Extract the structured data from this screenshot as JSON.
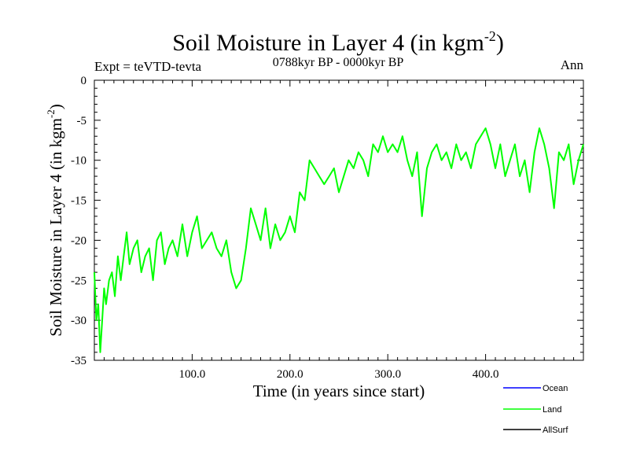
{
  "chart_data": {
    "type": "line",
    "title": "Soil Moisture in Layer 4 (in kgm",
    "title_sup": "-2",
    "title_close": ")",
    "subtitle_left": "Expt = teVTD-tevta",
    "subtitle_center": "0788kyr BP - 0000kyr BP",
    "subtitle_right": "Ann",
    "xlabel": "Time (in years since start)",
    "ylabel": "Soil Moisture in Layer 4 (in kgm",
    "ylabel_sup": "-2",
    "ylabel_close": ")",
    "xlim": [
      0,
      500
    ],
    "ylim": [
      -35,
      0
    ],
    "xticks": [
      100,
      200,
      300,
      400
    ],
    "xtick_labels": [
      "100.0",
      "200.0",
      "300.0",
      "400.0"
    ],
    "yticks": [
      0,
      -5,
      -10,
      -15,
      -20,
      -25,
      -30,
      -35
    ],
    "ytick_labels": [
      "0",
      "-5",
      "-10",
      "-15",
      "-20",
      "-25",
      "-30",
      "-35"
    ],
    "legend": {
      "placement": "bottom-right",
      "items": [
        {
          "name": "Ocean",
          "color": "#0000ff"
        },
        {
          "name": "Land",
          "color": "#00ff00"
        },
        {
          "name": "AllSurf",
          "color": "#000000"
        }
      ]
    },
    "series": [
      {
        "name": "Land",
        "color": "#00ff00",
        "x": [
          0,
          2,
          4,
          6,
          8,
          10,
          12,
          15,
          18,
          21,
          24,
          27,
          30,
          33,
          36,
          40,
          44,
          48,
          52,
          56,
          60,
          64,
          68,
          72,
          76,
          80,
          85,
          90,
          95,
          100,
          105,
          110,
          115,
          120,
          125,
          130,
          135,
          140,
          145,
          150,
          155,
          160,
          165,
          170,
          175,
          180,
          185,
          190,
          195,
          200,
          205,
          210,
          215,
          220,
          225,
          230,
          235,
          240,
          245,
          250,
          255,
          260,
          265,
          270,
          275,
          280,
          285,
          290,
          295,
          300,
          305,
          310,
          315,
          320,
          325,
          330,
          335,
          340,
          345,
          350,
          355,
          360,
          365,
          370,
          375,
          380,
          385,
          390,
          395,
          400,
          405,
          410,
          415,
          420,
          425,
          430,
          435,
          440,
          445,
          450,
          455,
          460,
          465,
          470,
          475,
          480,
          485,
          490,
          495,
          500
        ],
        "values": [
          -24,
          -30,
          -28,
          -34,
          -30,
          -26,
          -28,
          -25,
          -24,
          -27,
          -22,
          -25,
          -22,
          -19,
          -23,
          -21,
          -20,
          -24,
          -22,
          -21,
          -25,
          -20,
          -19,
          -23,
          -21,
          -20,
          -22,
          -18,
          -22,
          -19,
          -17,
          -21,
          -20,
          -19,
          -21,
          -22,
          -20,
          -24,
          -26,
          -25,
          -21,
          -16,
          -18,
          -20,
          -16,
          -21,
          -18,
          -20,
          -19,
          -17,
          -19,
          -14,
          -15,
          -10,
          -11,
          -12,
          -13,
          -12,
          -11,
          -14,
          -12,
          -10,
          -11,
          -9,
          -10,
          -12,
          -8,
          -9,
          -7,
          -9,
          -8,
          -9,
          -7,
          -10,
          -12,
          -9,
          -17,
          -11,
          -9,
          -8,
          -10,
          -9,
          -11,
          -8,
          -10,
          -9,
          -11,
          -8,
          -7,
          -6,
          -8,
          -11,
          -8,
          -12,
          -10,
          -8,
          -12,
          -10,
          -14,
          -9,
          -6,
          -8,
          -11,
          -16,
          -9,
          -10,
          -8,
          -13,
          -10,
          -8
        ]
      }
    ]
  }
}
